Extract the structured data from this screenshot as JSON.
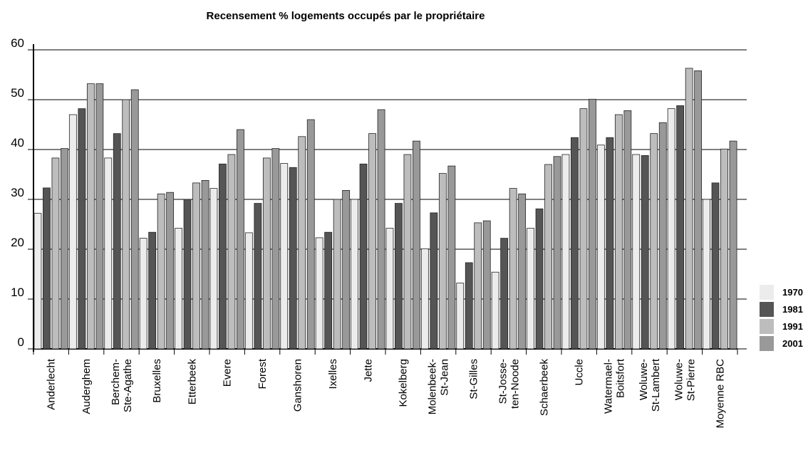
{
  "chart_data": {
    "type": "bar",
    "title": "Recensement % logements occupés par le propriétaire",
    "categories": [
      [
        "Anderlecht"
      ],
      [
        "Auderghem"
      ],
      [
        "Berchem-",
        "Ste-Agathe"
      ],
      [
        "Bruxelles"
      ],
      [
        "Etterbeek"
      ],
      [
        "Evere"
      ],
      [
        "Forest"
      ],
      [
        "Ganshoren"
      ],
      [
        "Ixelles"
      ],
      [
        "Jette"
      ],
      [
        "Kokelberg"
      ],
      [
        "Molenbeek-",
        "St-Jean"
      ],
      [
        "St-Gilles"
      ],
      [
        "St-Josse-",
        "ten-Noode"
      ],
      [
        "Schaerbeek"
      ],
      [
        "Uccle"
      ],
      [
        "Watermael-",
        "Boitsfort"
      ],
      [
        "Woluwe-",
        "St-Lambert"
      ],
      [
        "Woluwe-",
        "St-Pierre"
      ],
      [
        "Moyenne RBC"
      ]
    ],
    "series": [
      {
        "name": "1970",
        "color": "#ececec",
        "values": [
          27.2,
          47,
          38.3,
          22.2,
          24.2,
          32.2,
          23.3,
          37.2,
          22.3,
          30,
          24.2,
          20.1,
          13.2,
          15.4,
          24.2,
          39,
          40.9,
          39,
          48.2,
          30
        ]
      },
      {
        "name": "1981",
        "color": "#555555",
        "values": [
          32.3,
          48.2,
          43.2,
          23.4,
          30,
          37.1,
          29.2,
          36.4,
          23.4,
          37.1,
          29.2,
          27.3,
          17.3,
          22.2,
          28.1,
          42.4,
          42.4,
          38.8,
          48.8,
          33.3
        ]
      },
      {
        "name": "1991",
        "color": "#bdbdbd",
        "values": [
          38.3,
          53.2,
          50,
          31.1,
          33.3,
          39,
          38.3,
          42.6,
          30,
          43.2,
          39,
          35.2,
          25.3,
          32.2,
          37,
          48.2,
          47,
          43.2,
          56.3,
          40.1
        ]
      },
      {
        "name": "2001",
        "color": "#999999",
        "values": [
          40.2,
          53.2,
          52,
          31.4,
          33.8,
          44,
          40.2,
          46,
          31.8,
          48,
          41.7,
          36.7,
          25.7,
          31.1,
          38.6,
          50.1,
          47.8,
          45.4,
          55.8,
          41.7
        ]
      }
    ],
    "ylim": [
      0,
      60
    ],
    "yticks": [
      0,
      10,
      20,
      30,
      40,
      50,
      60
    ],
    "grid": true,
    "legend": "right"
  }
}
